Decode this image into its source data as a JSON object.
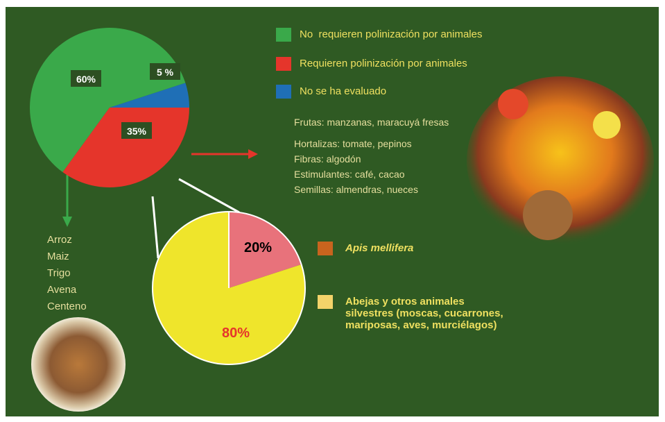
{
  "chart_data": [
    {
      "type": "pie",
      "categories": [
        "No  requieren polinización por animales",
        "Requieren polinización por animales",
        "No se ha evaluado"
      ],
      "values": [
        60,
        35,
        5
      ],
      "value_labels": [
        "60%",
        "35%",
        "5 %"
      ],
      "colors": [
        "#3aa94a",
        "#e5352b",
        "#1f6fb6"
      ],
      "annotations": {
        "animal_pollinated_crops": [
          "Frutas: manzanas, maracuyá fresas",
          "Hortalizas: tomate, pepinos",
          "Fibras: algodón",
          "Estimulantes: café, cacao",
          "Semillas: almendras, nueces"
        ],
        "wind_pollinated_crops": [
          "Arroz",
          "Maiz",
          "Trigo",
          "Avena",
          "Centeno"
        ]
      }
    },
    {
      "type": "pie",
      "categories": [
        "Apis mellifera",
        "Abejas  y otros animales silvestres (moscas, cucarrones, mariposas, aves, murciélagos)"
      ],
      "values": [
        20,
        80
      ],
      "value_labels": [
        "20%",
        "80%"
      ],
      "colors": [
        "#e8727b",
        "#efe52b"
      ],
      "legend_colors": [
        "#c8641e",
        "#f3d36a"
      ]
    }
  ]
}
